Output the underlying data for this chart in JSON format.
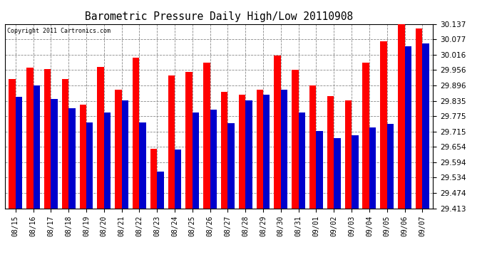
{
  "title": "Barometric Pressure Daily High/Low 20110908",
  "copyright": "Copyright 2011 Cartronics.com",
  "dates": [
    "08/15",
    "08/16",
    "08/17",
    "08/18",
    "08/19",
    "08/20",
    "08/21",
    "08/22",
    "08/23",
    "08/24",
    "08/25",
    "08/26",
    "08/27",
    "08/28",
    "08/29",
    "08/30",
    "08/31",
    "09/01",
    "09/02",
    "09/03",
    "09/04",
    "09/05",
    "09/06",
    "09/07"
  ],
  "highs": [
    29.92,
    29.966,
    29.96,
    29.92,
    29.82,
    29.968,
    29.878,
    30.006,
    29.648,
    29.934,
    29.95,
    29.986,
    29.87,
    29.86,
    29.878,
    30.012,
    29.956,
    29.896,
    29.855,
    29.838,
    29.986,
    30.068,
    30.137,
    30.12
  ],
  "lows": [
    29.852,
    29.896,
    29.842,
    29.806,
    29.75,
    29.79,
    29.836,
    29.75,
    29.556,
    29.644,
    29.79,
    29.8,
    29.748,
    29.836,
    29.86,
    29.88,
    29.788,
    29.716,
    29.688,
    29.7,
    29.73,
    29.744,
    30.05,
    30.06
  ],
  "high_color": "#ff0000",
  "low_color": "#0000cc",
  "bg_color": "#ffffff",
  "grid_color": "#888888",
  "ylim_min": 29.413,
  "ylim_max": 30.137,
  "yticks": [
    29.413,
    29.474,
    29.534,
    29.594,
    29.654,
    29.715,
    29.775,
    29.835,
    29.896,
    29.956,
    30.016,
    30.077,
    30.137
  ]
}
